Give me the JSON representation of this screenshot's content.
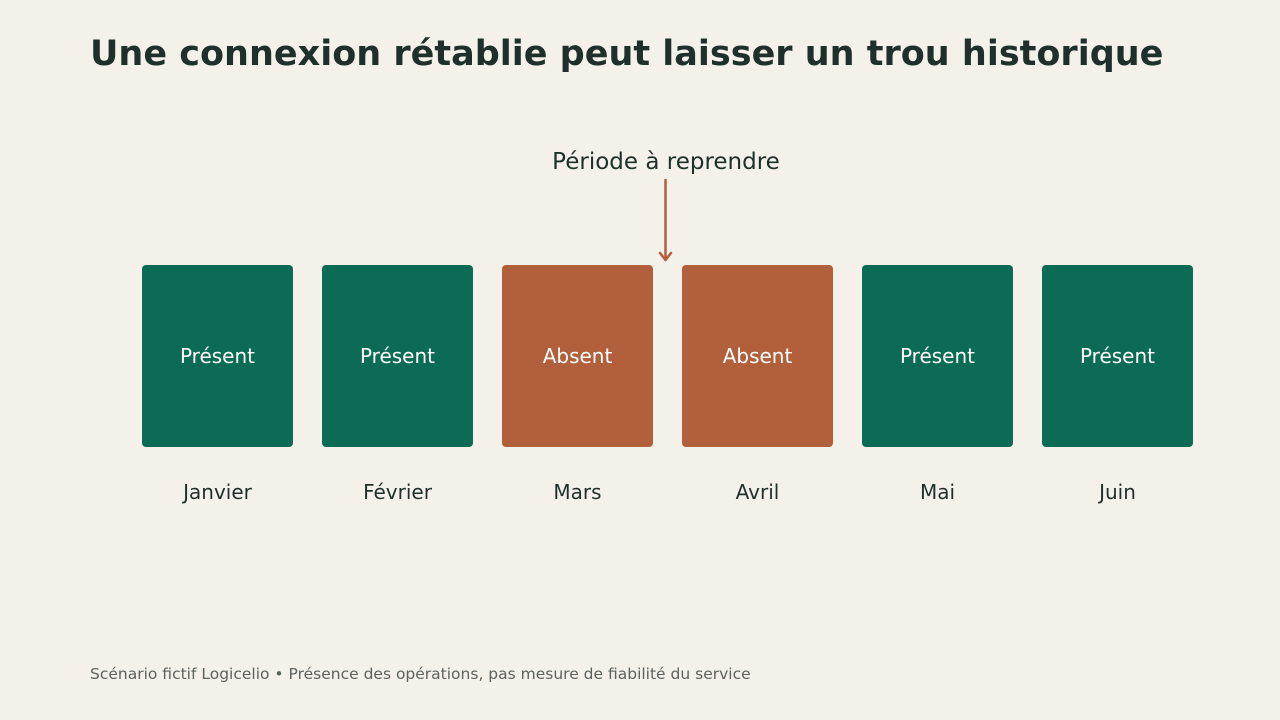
{
  "title": "Une connexion rétablie peut laisser un trou historique",
  "callout": {
    "label": "Période à reprendre"
  },
  "colors": {
    "present": "#0b6b54",
    "absent": "#b2603b",
    "arrow": "#b2603b",
    "background": "#f4f1ea",
    "text": "#1f302a"
  },
  "months": [
    {
      "name": "Janvier",
      "status": "Présent",
      "state": "present"
    },
    {
      "name": "Février",
      "status": "Présent",
      "state": "present"
    },
    {
      "name": "Mars",
      "status": "Absent",
      "state": "absent"
    },
    {
      "name": "Avril",
      "status": "Absent",
      "state": "absent"
    },
    {
      "name": "Mai",
      "status": "Présent",
      "state": "present"
    },
    {
      "name": "Juin",
      "status": "Présent",
      "state": "present"
    }
  ],
  "footer": "Scénario fictif Logicelio • Présence des opérations, pas mesure de fiabilité du service"
}
